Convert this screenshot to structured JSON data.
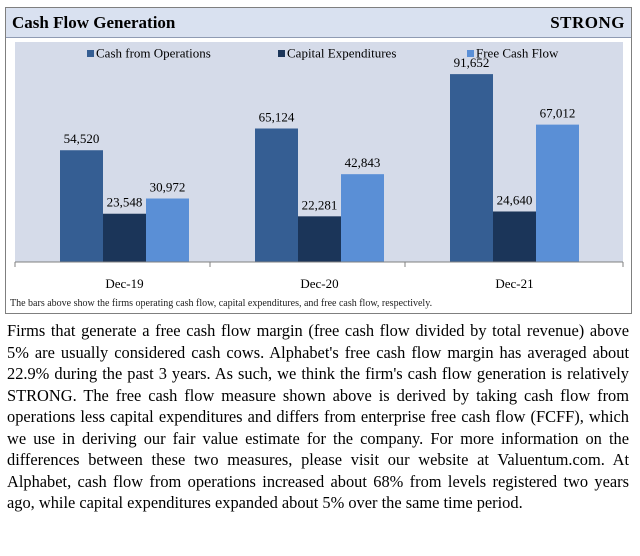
{
  "header": {
    "title": "Cash Flow Generation",
    "rating": "STRONG"
  },
  "caption": "The bars above show the firms operating cash flow, capital expenditures, and free cash flow, respectively.",
  "paragraph": "Firms that generate a free cash flow margin (free cash flow divided by total revenue) above 5% are usually considered cash cows. Alphabet's free cash flow margin has averaged about 22.9% during the past 3 years. As such, we think the firm's cash flow generation is relatively STRONG. The free cash flow measure shown above is derived by taking cash flow from operations less capital expenditures and differs from enterprise free cash flow (FCFF), which we use in deriving our fair value estimate for the company. For more information on the differences between these two measures, please visit our website at Valuentum.com. At Alphabet, cash flow from operations increased about 68% from levels registered two years ago, while capital expenditures expanded about 5% over the same time period.",
  "colors": {
    "plot_background": "#d5dbe9",
    "cfo": "#355e93",
    "capex": "#1b3559",
    "fcf": "#5a8fd6"
  },
  "chart_data": {
    "type": "bar",
    "categories": [
      "Dec-19",
      "Dec-20",
      "Dec-21"
    ],
    "series": [
      {
        "name": "Cash from Operations",
        "values": [
          54520,
          65124,
          91652
        ],
        "labels": [
          "54,520",
          "65,124",
          "91,652"
        ]
      },
      {
        "name": "Capital Expenditures",
        "values": [
          23548,
          22281,
          24640
        ],
        "labels": [
          "23,548",
          "22,281",
          "24,640"
        ]
      },
      {
        "name": "Free Cash Flow",
        "values": [
          30972,
          42843,
          67012
        ],
        "labels": [
          "30,972",
          "42,843",
          "67,012"
        ]
      }
    ],
    "ylim": [
      0,
      100000
    ],
    "grid": false,
    "legend": "top"
  }
}
